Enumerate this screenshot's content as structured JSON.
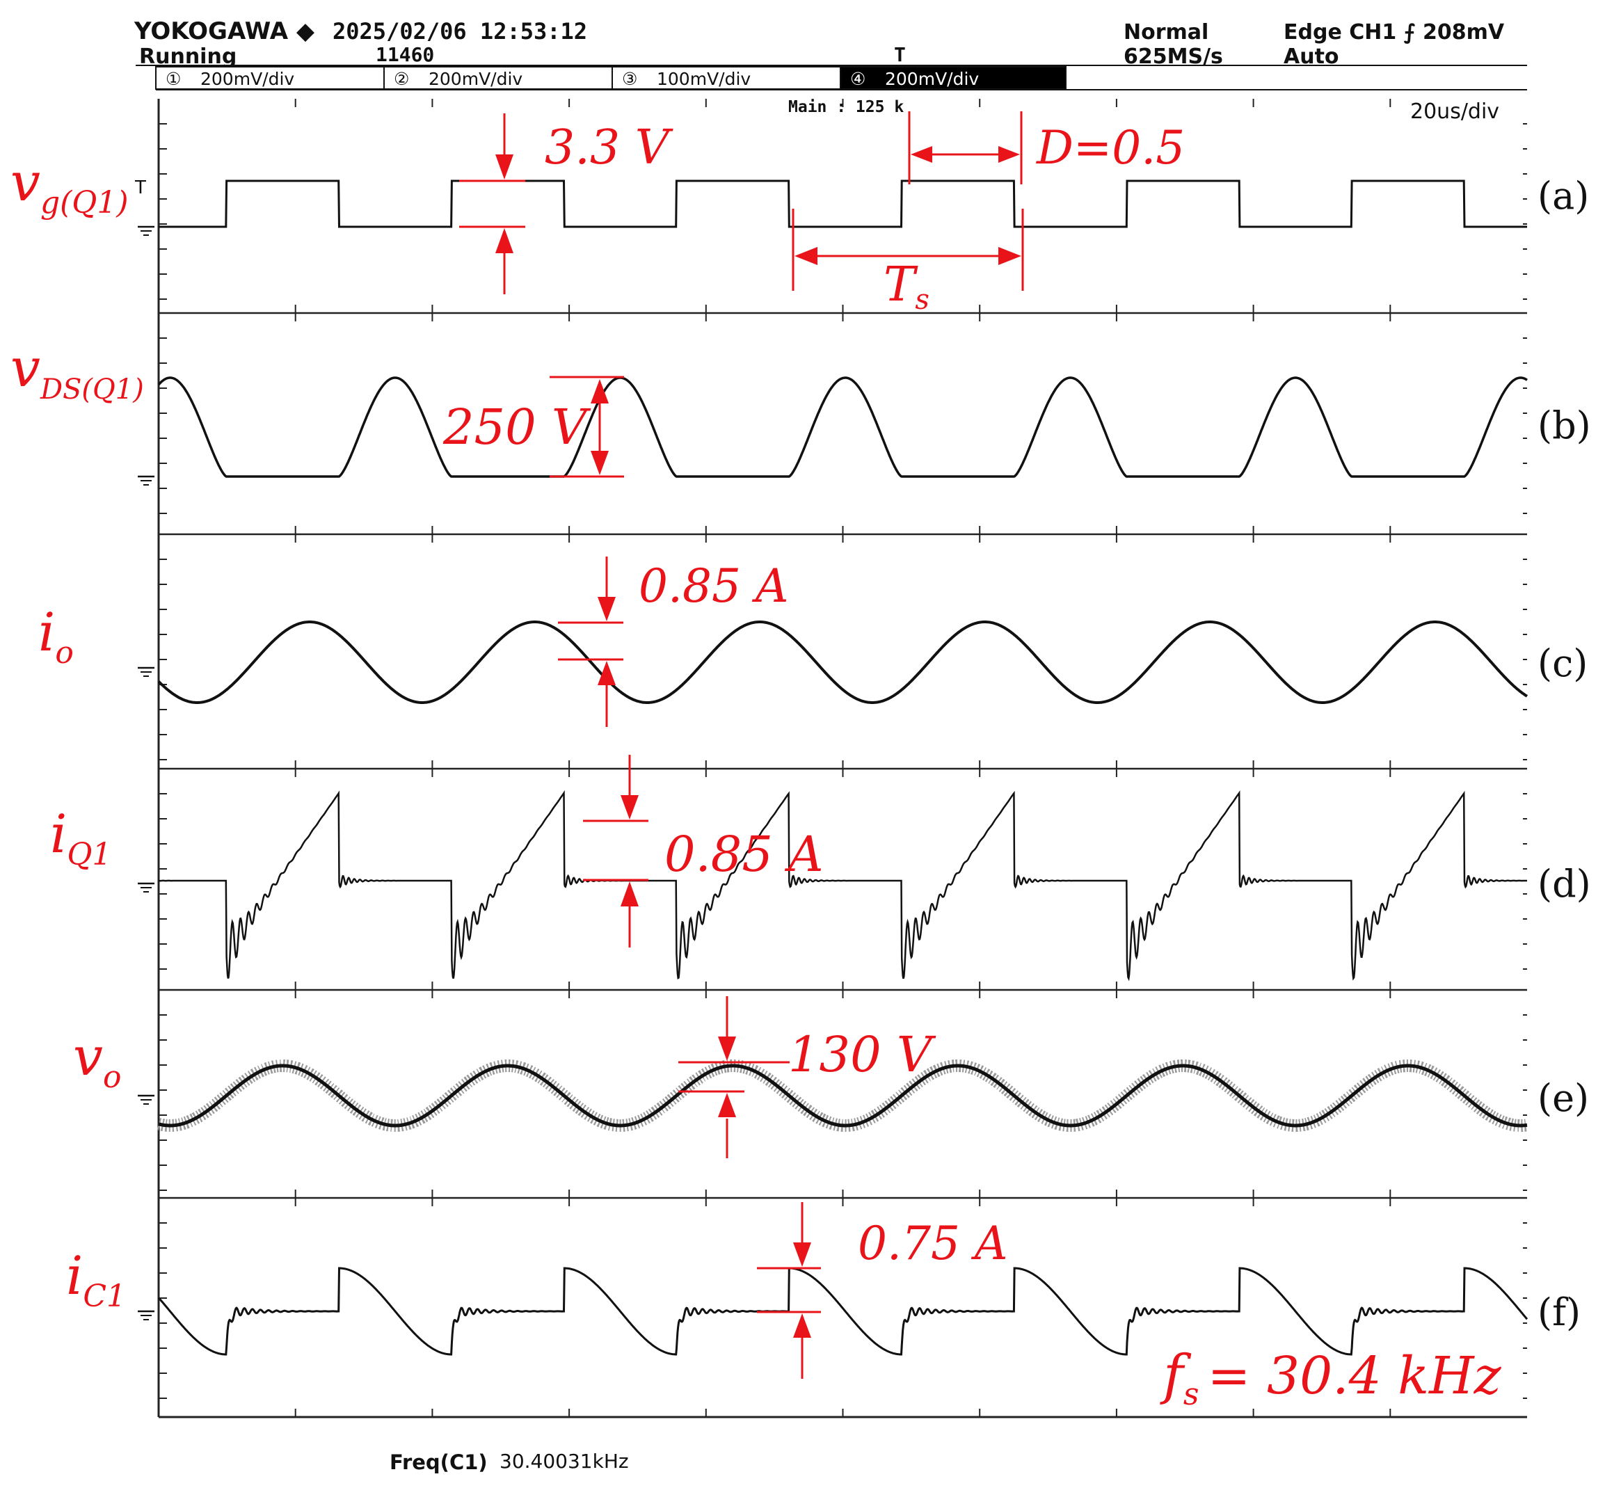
{
  "header": {
    "brand": "YOKOGAWA ◆",
    "datetime": "2025/02/06 12:53:12",
    "state": "Running",
    "count": "11460",
    "mode": "Normal",
    "sample_rate": "625MS/s",
    "trigger": "Edge CH1 ⨍ 208mV",
    "trigger_mode": "Auto",
    "main_record": "Main : 125 k",
    "timebase": "20us/div",
    "channels": [
      {
        "num": "①",
        "scale": "200mV/div",
        "active": false
      },
      {
        "num": "②",
        "scale": "200mV/div",
        "active": false
      },
      {
        "num": "③",
        "scale": "100mV/div",
        "active": false
      },
      {
        "num": "④",
        "scale": "200mV/div",
        "active": true
      }
    ]
  },
  "footer": {
    "measure_label": "Freq(C1)",
    "measure_value": "30.40031kHz"
  },
  "annotations": {
    "a": {
      "main": "v",
      "sub": "g(Q1)",
      "amp": "3.3 V",
      "duty": "D=0.5",
      "period_main": "T",
      "period_sub": "s"
    },
    "b": {
      "main": "v",
      "sub": "DS(Q1)",
      "amp": "250 V"
    },
    "c": {
      "main": "i",
      "sub": "o",
      "amp": "0.85 A"
    },
    "d": {
      "main": "i",
      "sub": "Q1",
      "amp": "0.85 A"
    },
    "e": {
      "main": "v",
      "sub": "o",
      "amp": "130 V"
    },
    "f": {
      "main": "i",
      "sub": "C1",
      "amp": "0.75 A"
    },
    "freq_main": "f",
    "freq_sub": "s",
    "freq_value": "= 30.4 kHz"
  },
  "colors": {
    "trace": "#111111",
    "annotation": "#e8141a",
    "grid": "#222222",
    "background": "#ffffff"
  },
  "chart_data": {
    "type": "line",
    "title": "",
    "xlabel": "",
    "ylabel": "",
    "time_per_div_us": 20,
    "switching_frequency_khz": 30.40031,
    "duty_cycle": 0.5,
    "x_range_us": [
      0,
      200
    ],
    "grid": true,
    "panels": [
      {
        "label": "(a)",
        "name": "v_g(Q1)",
        "amplitude": "3.3 V",
        "waveform": "square"
      },
      {
        "label": "(b)",
        "name": "v_DS(Q1)",
        "amplitude": "250 V",
        "waveform": "resonant half-sine pulses"
      },
      {
        "label": "(c)",
        "name": "i_o",
        "amplitude": "0.85 A",
        "waveform": "sine"
      },
      {
        "label": "(d)",
        "name": "i_Q1",
        "amplitude": "0.85 A",
        "waveform": "ramp with ringing"
      },
      {
        "label": "(e)",
        "name": "v_o",
        "amplitude": "130 V",
        "waveform": "sine"
      },
      {
        "label": "(f)",
        "name": "i_C1",
        "amplitude": "0.75 A",
        "waveform": "resonant with ringing"
      }
    ]
  }
}
